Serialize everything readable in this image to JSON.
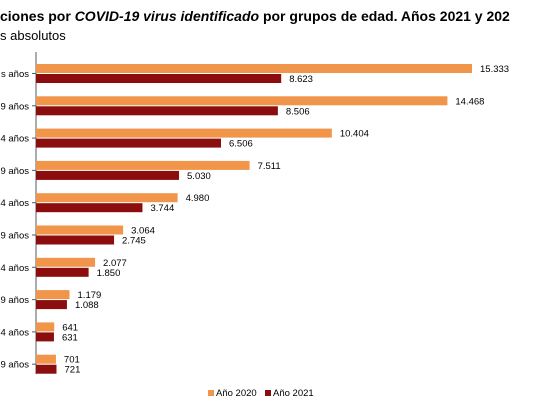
{
  "chart_data": {
    "type": "bar",
    "orientation": "horizontal",
    "title_parts": [
      "ciones por ",
      "COVID-19 virus identificado",
      " por grupos de edad. Años 2021 y 202"
    ],
    "subtitle": "s absolutos",
    "categories": [
      "s años",
      "9 años",
      "4 años",
      "9 años",
      "4 años",
      "9 años",
      "4 años",
      "9 años",
      "4 años",
      "9 años"
    ],
    "series": [
      {
        "name": "Año 2020",
        "color": "#F0954A",
        "values": [
          15333,
          14468,
          10404,
          7511,
          4980,
          3064,
          2077,
          1179,
          641,
          701
        ],
        "labels": [
          "15.333",
          "14.468",
          "10.404",
          "7.511",
          "4.980",
          "3.064",
          "2.077",
          "1.179",
          "641",
          "701"
        ]
      },
      {
        "name": "Año 2021",
        "color": "#8B0D0D",
        "values": [
          8623,
          8506,
          6506,
          5030,
          3744,
          2745,
          1850,
          1088,
          631,
          721
        ],
        "labels": [
          "8.623",
          "8.506",
          "6.506",
          "5.030",
          "3.744",
          "2.745",
          "1.850",
          "1.088",
          "631",
          "721"
        ]
      }
    ],
    "legend": {
      "position": "bottom-right",
      "items": [
        "Año 2020",
        "Año 2021"
      ]
    },
    "grid": false
  }
}
